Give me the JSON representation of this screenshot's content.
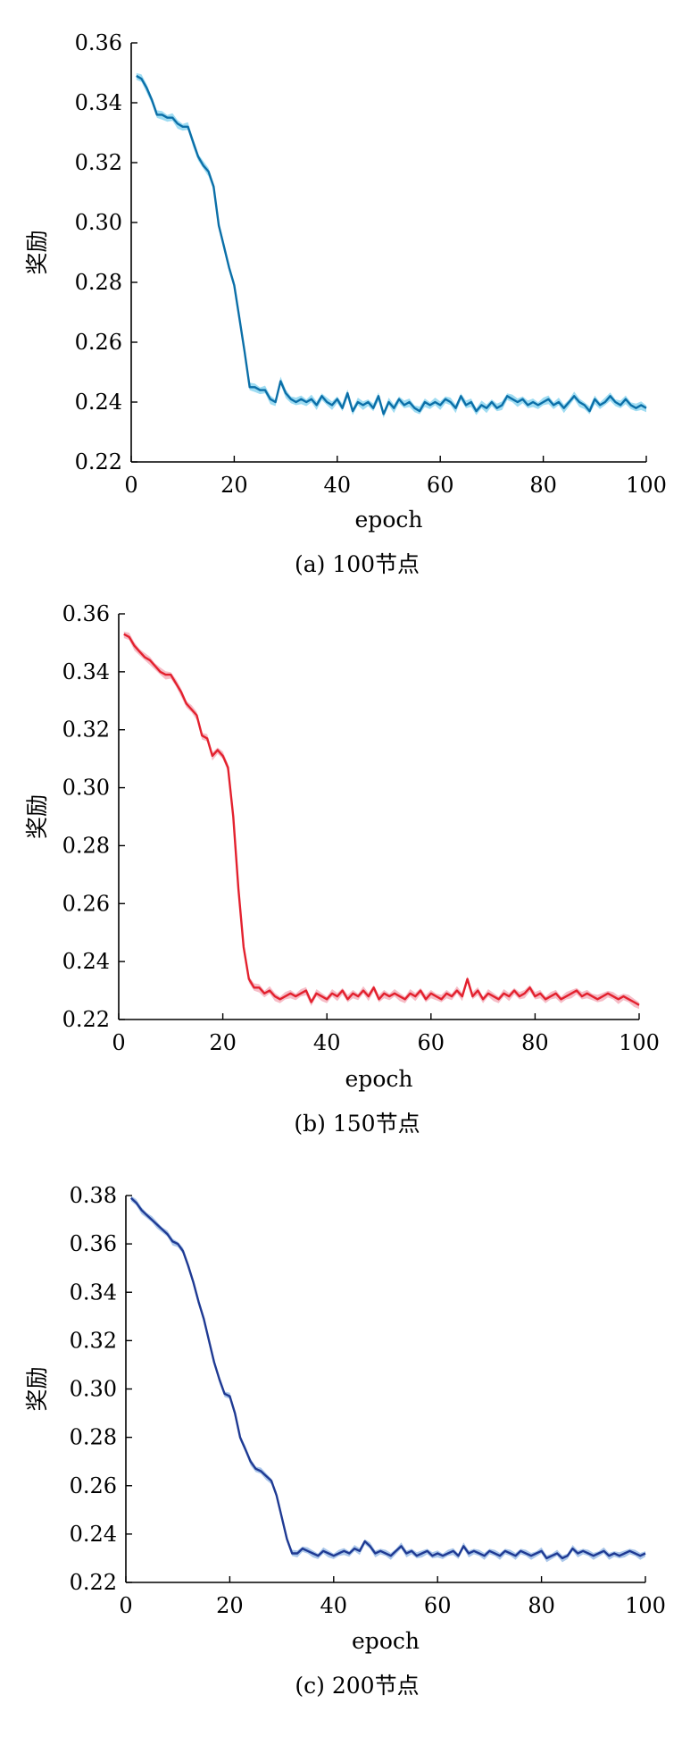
{
  "chart_data": [
    {
      "type": "line",
      "caption": "(a) 100节点",
      "title": "",
      "xlabel": "epoch",
      "ylabel": "奖励",
      "xlim": [
        0,
        100
      ],
      "ylim": [
        0.22,
        0.36
      ],
      "xticks": [
        0,
        20,
        40,
        60,
        80,
        100
      ],
      "yticks": [
        0.22,
        0.24,
        0.26,
        0.28,
        0.3,
        0.32,
        0.34,
        0.36
      ],
      "xtick_labels": [
        "0",
        "20",
        "40",
        "60",
        "80",
        "100"
      ],
      "ytick_labels": [
        "0.22",
        "0.24",
        "0.26",
        "0.28",
        "0.30",
        "0.32",
        "0.34",
        "0.36"
      ],
      "grid": false,
      "line_color": "#0b6fa8",
      "band_color": "#7fd0ee",
      "band_halfwidth": 0.0015,
      "x": [
        1,
        2,
        3,
        4,
        5,
        6,
        7,
        8,
        9,
        10,
        11,
        12,
        13,
        14,
        15,
        16,
        17,
        18,
        19,
        20,
        21,
        22,
        23,
        24,
        25,
        26,
        27,
        28,
        29,
        30,
        31,
        32,
        33,
        34,
        35,
        36,
        37,
        38,
        39,
        40,
        41,
        42,
        43,
        44,
        45,
        46,
        47,
        48,
        49,
        50,
        51,
        52,
        53,
        54,
        55,
        56,
        57,
        58,
        59,
        60,
        61,
        62,
        63,
        64,
        65,
        66,
        67,
        68,
        69,
        70,
        71,
        72,
        73,
        74,
        75,
        76,
        77,
        78,
        79,
        80,
        81,
        82,
        83,
        84,
        85,
        86,
        87,
        88,
        89,
        90,
        91,
        92,
        93,
        94,
        95,
        96,
        97,
        98,
        99,
        100
      ],
      "values": [
        0.349,
        0.348,
        0.345,
        0.341,
        0.336,
        0.336,
        0.335,
        0.335,
        0.333,
        0.332,
        0.332,
        0.327,
        0.322,
        0.319,
        0.317,
        0.312,
        0.299,
        0.292,
        0.285,
        0.279,
        0.268,
        0.257,
        0.245,
        0.245,
        0.244,
        0.244,
        0.241,
        0.24,
        0.247,
        0.243,
        0.241,
        0.24,
        0.241,
        0.24,
        0.241,
        0.239,
        0.242,
        0.24,
        0.239,
        0.241,
        0.238,
        0.243,
        0.237,
        0.24,
        0.239,
        0.24,
        0.238,
        0.242,
        0.236,
        0.24,
        0.238,
        0.241,
        0.239,
        0.24,
        0.238,
        0.237,
        0.24,
        0.239,
        0.24,
        0.239,
        0.241,
        0.24,
        0.238,
        0.242,
        0.239,
        0.24,
        0.237,
        0.239,
        0.238,
        0.24,
        0.238,
        0.239,
        0.242,
        0.241,
        0.24,
        0.241,
        0.239,
        0.24,
        0.239,
        0.24,
        0.241,
        0.239,
        0.24,
        0.238,
        0.24,
        0.242,
        0.24,
        0.239,
        0.237,
        0.241,
        0.239,
        0.24,
        0.242,
        0.24,
        0.239,
        0.241,
        0.239,
        0.238,
        0.239,
        0.238
      ]
    },
    {
      "type": "line",
      "caption": "(b) 150节点",
      "title": "",
      "xlabel": "epoch",
      "ylabel": "奖励",
      "xlim": [
        0,
        100
      ],
      "ylim": [
        0.22,
        0.36
      ],
      "xticks": [
        0,
        20,
        40,
        60,
        80,
        100
      ],
      "yticks": [
        0.22,
        0.24,
        0.26,
        0.28,
        0.3,
        0.32,
        0.34,
        0.36
      ],
      "xtick_labels": [
        "0",
        "20",
        "40",
        "60",
        "80",
        "100"
      ],
      "ytick_labels": [
        "0.22",
        "0.24",
        "0.26",
        "0.28",
        "0.30",
        "0.32",
        "0.34",
        "0.36"
      ],
      "grid": false,
      "line_color": "#e3212e",
      "band_color": "#f3a7b4",
      "band_halfwidth": 0.0015,
      "x": [
        1,
        2,
        3,
        4,
        5,
        6,
        7,
        8,
        9,
        10,
        11,
        12,
        13,
        14,
        15,
        16,
        17,
        18,
        19,
        20,
        21,
        22,
        23,
        24,
        25,
        26,
        27,
        28,
        29,
        30,
        31,
        32,
        33,
        34,
        35,
        36,
        37,
        38,
        39,
        40,
        41,
        42,
        43,
        44,
        45,
        46,
        47,
        48,
        49,
        50,
        51,
        52,
        53,
        54,
        55,
        56,
        57,
        58,
        59,
        60,
        61,
        62,
        63,
        64,
        65,
        66,
        67,
        68,
        69,
        70,
        71,
        72,
        73,
        74,
        75,
        76,
        77,
        78,
        79,
        80,
        81,
        82,
        83,
        84,
        85,
        86,
        87,
        88,
        89,
        90,
        91,
        92,
        93,
        94,
        95,
        96,
        97,
        98,
        99,
        100
      ],
      "values": [
        0.353,
        0.352,
        0.349,
        0.347,
        0.345,
        0.344,
        0.342,
        0.34,
        0.339,
        0.339,
        0.336,
        0.333,
        0.329,
        0.327,
        0.325,
        0.318,
        0.317,
        0.311,
        0.313,
        0.311,
        0.307,
        0.29,
        0.265,
        0.245,
        0.234,
        0.231,
        0.231,
        0.229,
        0.23,
        0.228,
        0.227,
        0.228,
        0.229,
        0.228,
        0.229,
        0.23,
        0.226,
        0.229,
        0.228,
        0.227,
        0.229,
        0.228,
        0.23,
        0.227,
        0.229,
        0.228,
        0.23,
        0.228,
        0.231,
        0.227,
        0.229,
        0.228,
        0.229,
        0.228,
        0.227,
        0.229,
        0.228,
        0.23,
        0.227,
        0.229,
        0.228,
        0.227,
        0.229,
        0.228,
        0.23,
        0.228,
        0.234,
        0.228,
        0.23,
        0.227,
        0.229,
        0.228,
        0.227,
        0.229,
        0.228,
        0.23,
        0.228,
        0.229,
        0.231,
        0.228,
        0.229,
        0.227,
        0.228,
        0.229,
        0.227,
        0.228,
        0.229,
        0.23,
        0.228,
        0.229,
        0.228,
        0.227,
        0.228,
        0.229,
        0.228,
        0.227,
        0.228,
        0.227,
        0.226,
        0.225
      ]
    },
    {
      "type": "line",
      "caption": "(c) 200节点",
      "title": "",
      "xlabel": "epoch",
      "ylabel": "奖励",
      "xlim": [
        0,
        100
      ],
      "ylim": [
        0.22,
        0.38
      ],
      "xticks": [
        0,
        20,
        40,
        60,
        80,
        100
      ],
      "yticks": [
        0.22,
        0.24,
        0.26,
        0.28,
        0.3,
        0.32,
        0.34,
        0.36,
        0.38
      ],
      "xtick_labels": [
        "0",
        "20",
        "40",
        "60",
        "80",
        "100"
      ],
      "ytick_labels": [
        "0.22",
        "0.24",
        "0.26",
        "0.28",
        "0.30",
        "0.32",
        "0.34",
        "0.36",
        "0.38"
      ],
      "grid": false,
      "line_color": "#1f3a93",
      "band_color": "#8fb4e3",
      "band_halfwidth": 0.0015,
      "x": [
        1,
        2,
        3,
        4,
        5,
        6,
        7,
        8,
        9,
        10,
        11,
        12,
        13,
        14,
        15,
        16,
        17,
        18,
        19,
        20,
        21,
        22,
        23,
        24,
        25,
        26,
        27,
        28,
        29,
        30,
        31,
        32,
        33,
        34,
        35,
        36,
        37,
        38,
        39,
        40,
        41,
        42,
        43,
        44,
        45,
        46,
        47,
        48,
        49,
        50,
        51,
        52,
        53,
        54,
        55,
        56,
        57,
        58,
        59,
        60,
        61,
        62,
        63,
        64,
        65,
        66,
        67,
        68,
        69,
        70,
        71,
        72,
        73,
        74,
        75,
        76,
        77,
        78,
        79,
        80,
        81,
        82,
        83,
        84,
        85,
        86,
        87,
        88,
        89,
        90,
        91,
        92,
        93,
        94,
        95,
        96,
        97,
        98,
        99,
        100
      ],
      "values": [
        0.379,
        0.377,
        0.374,
        0.372,
        0.37,
        0.368,
        0.366,
        0.364,
        0.361,
        0.36,
        0.357,
        0.351,
        0.344,
        0.336,
        0.329,
        0.32,
        0.311,
        0.304,
        0.298,
        0.297,
        0.29,
        0.28,
        0.275,
        0.27,
        0.267,
        0.266,
        0.264,
        0.262,
        0.256,
        0.247,
        0.238,
        0.232,
        0.232,
        0.234,
        0.233,
        0.232,
        0.231,
        0.233,
        0.232,
        0.231,
        0.232,
        0.233,
        0.232,
        0.234,
        0.233,
        0.237,
        0.235,
        0.232,
        0.233,
        0.232,
        0.231,
        0.233,
        0.235,
        0.232,
        0.233,
        0.231,
        0.232,
        0.233,
        0.231,
        0.232,
        0.231,
        0.232,
        0.233,
        0.231,
        0.235,
        0.232,
        0.233,
        0.232,
        0.231,
        0.233,
        0.232,
        0.231,
        0.233,
        0.232,
        0.231,
        0.233,
        0.232,
        0.231,
        0.232,
        0.233,
        0.23,
        0.231,
        0.232,
        0.23,
        0.231,
        0.234,
        0.232,
        0.233,
        0.232,
        0.231,
        0.232,
        0.233,
        0.231,
        0.232,
        0.231,
        0.232,
        0.233,
        0.232,
        0.231,
        0.232
      ]
    }
  ]
}
